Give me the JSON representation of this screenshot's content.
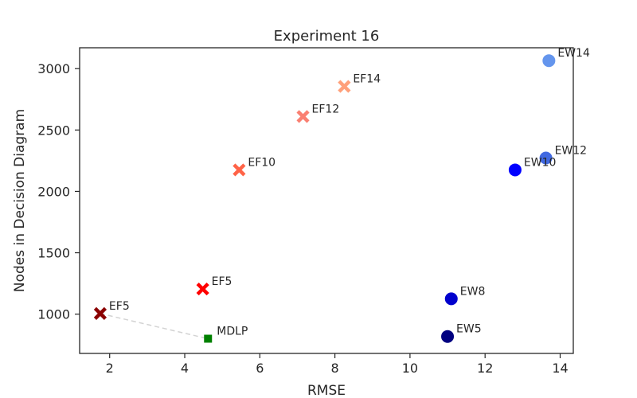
{
  "chart_data": {
    "type": "scatter",
    "title": "Experiment 16",
    "xlabel": "RMSE",
    "ylabel": "Nodes in Decision Diagram",
    "xlim": [
      1.2,
      14.35
    ],
    "ylim": [
      680,
      3170
    ],
    "xticks": [
      2,
      4,
      6,
      8,
      10,
      12,
      14
    ],
    "yticks": [
      1000,
      1500,
      2000,
      2500,
      3000
    ],
    "grid": false,
    "points": [
      {
        "label": "EF5",
        "x": 1.75,
        "y": 1005,
        "marker": "x",
        "color": "#8b0000"
      },
      {
        "label": "EF5",
        "x": 4.48,
        "y": 1205,
        "marker": "x",
        "color": "#ff0000"
      },
      {
        "label": "EF10",
        "x": 5.45,
        "y": 2175,
        "marker": "x",
        "color": "#ff6347"
      },
      {
        "label": "EF12",
        "x": 7.15,
        "y": 2610,
        "marker": "x",
        "color": "#fa8072"
      },
      {
        "label": "EF14",
        "x": 8.25,
        "y": 2855,
        "marker": "x",
        "color": "#ffa07a"
      },
      {
        "label": "MDLP",
        "x": 4.62,
        "y": 800,
        "marker": "square",
        "color": "#008000"
      },
      {
        "label": "EW5",
        "x": 11.0,
        "y": 818,
        "marker": "circle",
        "color": "#000080"
      },
      {
        "label": "EW8",
        "x": 11.1,
        "y": 1125,
        "marker": "circle",
        "color": "#0000cd"
      },
      {
        "label": "EW10",
        "x": 12.8,
        "y": 2175,
        "marker": "circle",
        "color": "#0000ff"
      },
      {
        "label": "EW12",
        "x": 13.62,
        "y": 2272,
        "marker": "circle",
        "color": "#4169e1"
      },
      {
        "label": "EW14",
        "x": 13.7,
        "y": 3065,
        "marker": "circle",
        "color": "#6495ed"
      }
    ],
    "connector": {
      "from": [
        1.75,
        1005
      ],
      "to": [
        4.62,
        800
      ],
      "style": "dashed",
      "color": "#d3d3d3"
    }
  }
}
